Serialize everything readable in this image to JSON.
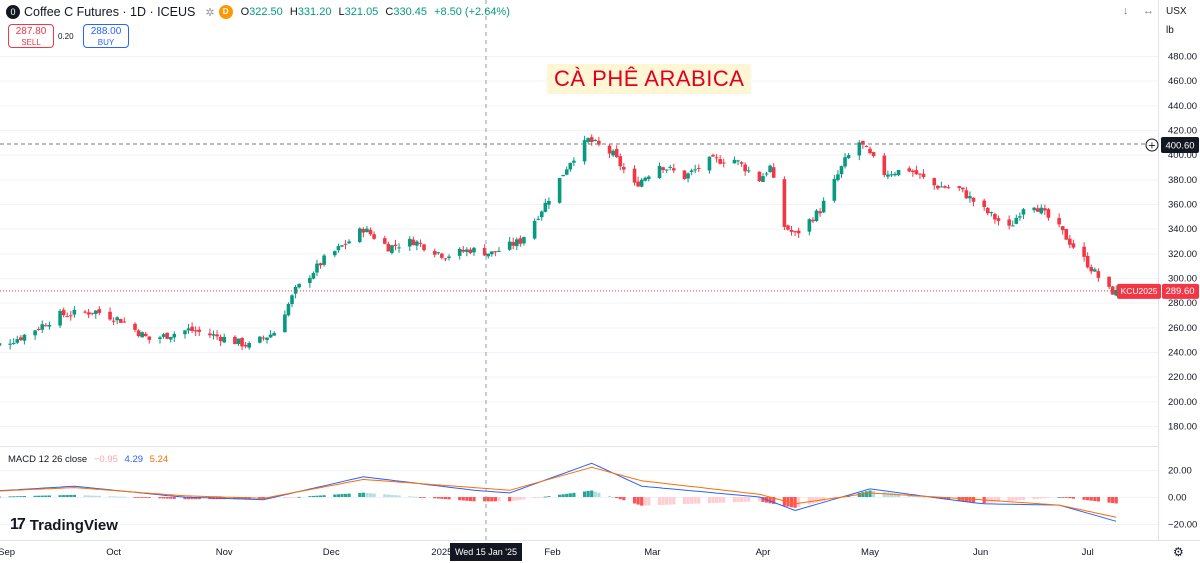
{
  "header": {
    "symbol": "Coffee C Futures · 1D · ICEUS",
    "logo_letter": "0",
    "badge": "D",
    "open_label": "O",
    "open": "322.50",
    "high_label": "H",
    "high": "331.20",
    "low_label": "L",
    "low": "321.05",
    "close_label": "C",
    "close": "330.45",
    "change": "+8.50 (+2.64%)"
  },
  "trade": {
    "sell_price": "287.80",
    "sell_label": "SELL",
    "spread": "0.20",
    "buy_price": "288.00",
    "buy_label": "BUY"
  },
  "top_right": {
    "arrow": "↓",
    "more": "↔",
    "currency": "USX",
    "unit": "lb"
  },
  "overlay_title": "CÀ PHÊ ARABICA",
  "macd_legend": {
    "name": "MACD 12 26 close",
    "hist": "−0.95",
    "macd": "4.29",
    "signal": "5.24"
  },
  "branding": "TradingView",
  "crosshair_date": "Wed 15 Jan '25",
  "price_tags": {
    "line_value": "400.60",
    "symbol_tag": "KCU2025",
    "last_price": "289.60"
  },
  "colors": {
    "up": "#089981",
    "down": "#f23645",
    "macd": "#2962ff",
    "signal": "#ff6d00",
    "hist_pos_strong": "#26a69a",
    "hist_pos_weak": "#b2dfdb",
    "hist_neg_strong": "#ff5252",
    "hist_neg_weak": "#ffcdd2"
  },
  "chart_data": [
    {
      "type": "candlestick",
      "title": "Coffee C Futures · 1D · ICEUS",
      "yaxis_ticks": [
        180,
        200,
        220,
        240,
        260,
        280,
        300,
        320,
        340,
        360,
        380,
        400,
        420,
        440,
        460,
        480
      ],
      "ylim": [
        165,
        500
      ],
      "xaxis_ticks": [
        "Sep",
        "Oct",
        "Nov",
        "Dec",
        "2025",
        "Feb",
        "Mar",
        "Apr",
        "May",
        "Jun",
        "Jul"
      ],
      "anchors_close": [
        [
          "2024-08-26",
          242
        ],
        [
          "2024-09-05",
          252
        ],
        [
          "2024-09-16",
          270
        ],
        [
          "2024-09-26",
          273
        ],
        [
          "2024-10-03",
          266
        ],
        [
          "2024-10-11",
          250
        ],
        [
          "2024-10-22",
          258
        ],
        [
          "2024-10-31",
          252
        ],
        [
          "2024-11-08",
          245
        ],
        [
          "2024-11-15",
          256
        ],
        [
          "2024-11-21",
          290
        ],
        [
          "2024-11-29",
          315
        ],
        [
          "2024-12-06",
          330
        ],
        [
          "2024-12-10",
          340
        ],
        [
          "2024-12-17",
          325
        ],
        [
          "2024-12-24",
          330
        ],
        [
          "2025-01-02",
          318
        ],
        [
          "2025-01-09",
          323
        ],
        [
          "2025-01-15",
          320
        ],
        [
          "2025-01-23",
          330
        ],
        [
          "2025-01-30",
          360
        ],
        [
          "2025-02-06",
          395
        ],
        [
          "2025-02-11",
          412
        ],
        [
          "2025-02-18",
          400
        ],
        [
          "2025-02-24",
          375
        ],
        [
          "2025-03-03",
          392
        ],
        [
          "2025-03-10",
          382
        ],
        [
          "2025-03-17",
          395
        ],
        [
          "2025-03-24",
          396
        ],
        [
          "2025-03-31",
          380
        ],
        [
          "2025-04-03",
          390
        ],
        [
          "2025-04-07",
          342
        ],
        [
          "2025-04-10",
          335
        ],
        [
          "2025-04-17",
          355
        ],
        [
          "2025-04-24",
          395
        ],
        [
          "2025-04-28",
          410
        ],
        [
          "2025-05-05",
          385
        ],
        [
          "2025-05-12",
          388
        ],
        [
          "2025-05-19",
          375
        ],
        [
          "2025-05-26",
          372
        ],
        [
          "2025-06-02",
          355
        ],
        [
          "2025-06-09",
          340
        ],
        [
          "2025-06-13",
          358
        ],
        [
          "2025-06-16",
          360
        ],
        [
          "2025-06-23",
          340
        ],
        [
          "2025-06-30",
          315
        ],
        [
          "2025-07-07",
          290
        ],
        [
          "2025-07-09",
          288
        ]
      ],
      "last_price": 289.6
    },
    {
      "type": "macd",
      "title": "MACD 12 26 close",
      "yaxis_ticks": [
        -20,
        0,
        20
      ],
      "ylim": [
        -27,
        30
      ],
      "anchors_macd": [
        [
          "2024-08-26",
          4
        ],
        [
          "2024-09-20",
          8
        ],
        [
          "2024-10-20",
          0
        ],
        [
          "2024-11-12",
          -2
        ],
        [
          "2024-12-10",
          15
        ],
        [
          "2025-01-10",
          5
        ],
        [
          "2025-01-20",
          3
        ],
        [
          "2025-02-12",
          25
        ],
        [
          "2025-02-26",
          8
        ],
        [
          "2025-03-31",
          0
        ],
        [
          "2025-04-10",
          -10
        ],
        [
          "2025-05-01",
          6
        ],
        [
          "2025-06-01",
          -5
        ],
        [
          "2025-06-23",
          -6
        ],
        [
          "2025-07-09",
          -18
        ]
      ],
      "anchors_signal": [
        [
          "2024-08-26",
          4
        ],
        [
          "2024-09-20",
          7
        ],
        [
          "2024-10-20",
          1
        ],
        [
          "2024-11-12",
          -1
        ],
        [
          "2024-12-10",
          13
        ],
        [
          "2025-01-10",
          7
        ],
        [
          "2025-01-20",
          5
        ],
        [
          "2025-02-12",
          22
        ],
        [
          "2025-02-26",
          12
        ],
        [
          "2025-03-31",
          2
        ],
        [
          "2025-04-10",
          -5
        ],
        [
          "2025-05-01",
          3
        ],
        [
          "2025-06-01",
          -2
        ],
        [
          "2025-06-23",
          -6
        ],
        [
          "2025-07-09",
          -15
        ]
      ],
      "last": {
        "hist": -0.95,
        "macd": 4.29,
        "signal": 5.24
      }
    }
  ]
}
